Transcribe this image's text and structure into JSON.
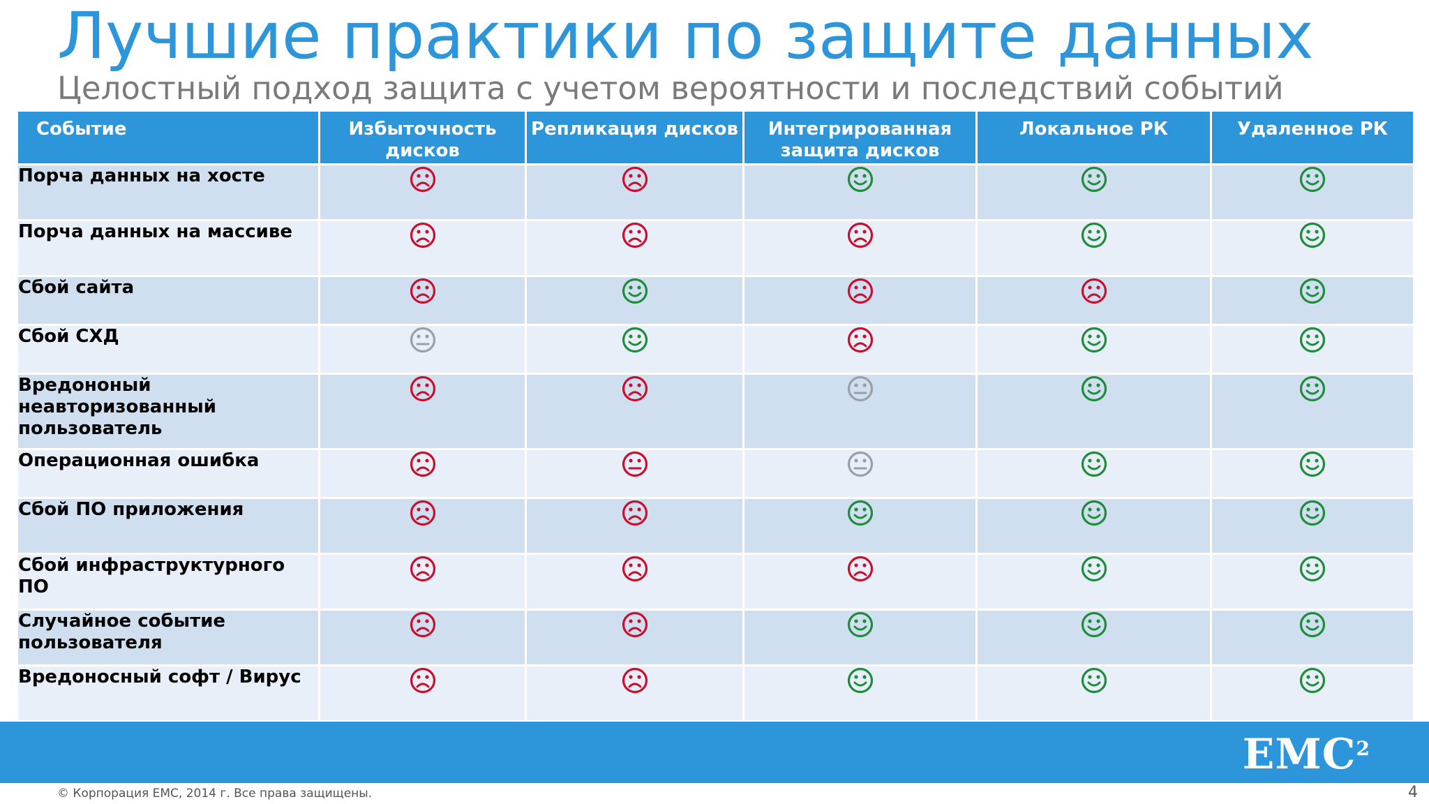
{
  "title": "Лучшие практики по защите данных",
  "subtitle": "Целостный подход защита с учетом вероятности и последствий событий",
  "colors": {
    "accent": "#2d95d9",
    "good": "#1e8c3a",
    "bad": "#c8102e",
    "neutral": "#9a9ea6"
  },
  "table": {
    "headers": [
      "Событие",
      "Избыточность дисков",
      "Репликация дисков",
      "Интегрированная защита дисков",
      "Локальное РК",
      "Удаленное РК"
    ],
    "rows": [
      {
        "event": "Порча данных на хосте",
        "ratings": [
          "bad",
          "bad",
          "good",
          "good",
          "good"
        ]
      },
      {
        "event": "Порча данных на массиве",
        "ratings": [
          "bad",
          "bad",
          "bad",
          "good",
          "good"
        ]
      },
      {
        "event": "Сбой сайта",
        "ratings": [
          "bad",
          "good",
          "bad",
          "bad",
          "good"
        ]
      },
      {
        "event": "Сбой СХД",
        "ratings": [
          "neutral",
          "good",
          "bad",
          "good",
          "good"
        ]
      },
      {
        "event": "Вредононый неавторизованный пользователь",
        "ratings": [
          "bad",
          "bad",
          "neutral",
          "good",
          "good"
        ]
      },
      {
        "event": "Операционная ошибка",
        "ratings": [
          "bad",
          "bad-neutral",
          "neutral",
          "good",
          "good"
        ]
      },
      {
        "event": "Сбой ПО приложения",
        "ratings": [
          "bad",
          "bad",
          "good",
          "good",
          "good"
        ]
      },
      {
        "event": "Сбой инфраструктурного ПО",
        "ratings": [
          "bad",
          "bad",
          "bad",
          "good",
          "good"
        ]
      },
      {
        "event": "Случайное событие пользователя",
        "ratings": [
          "bad",
          "bad",
          "good",
          "good",
          "good"
        ]
      },
      {
        "event": "Вредоносный софт / Вирус",
        "ratings": [
          "bad",
          "bad",
          "good",
          "good",
          "good"
        ]
      }
    ]
  },
  "footer": {
    "logo_text": "EMC",
    "logo_superscript": "2",
    "copyright": "© Корпорация EMC, 2014 г. Все права защищены.",
    "page_number": "4"
  }
}
